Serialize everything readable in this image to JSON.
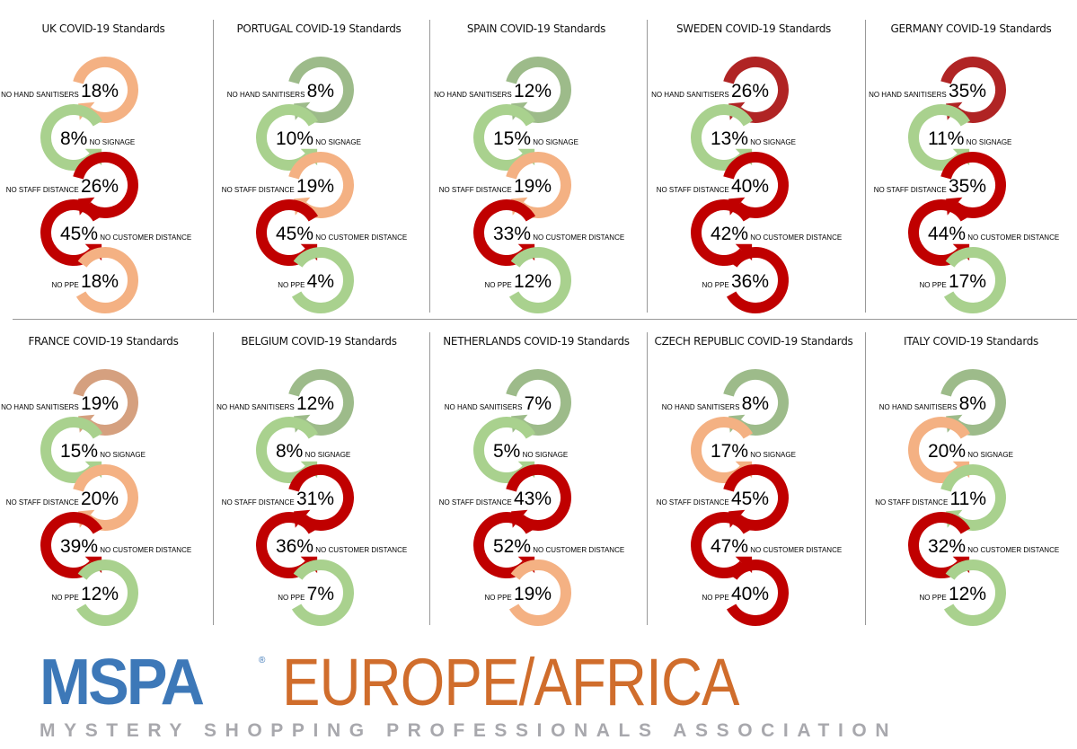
{
  "colors": {
    "green": "#a9d18e",
    "olive": "#9dbb8a",
    "orange": "#f4b183",
    "brown": "#d5a07f",
    "red": "#c00000",
    "darkred": "#b02424",
    "brand_blue": "#3d78b8",
    "brand_orange": "#d06d2c"
  },
  "chart_data": {
    "type": "infographic-arc-sequence",
    "metrics": [
      "NO HAND SANITISERS",
      "NO SIGNAGE",
      "NO STAFF DISTANCE",
      "NO CUSTOMER DISTANCE",
      "NO PPE"
    ],
    "unit": "%",
    "countries": [
      {
        "title": "UK COVID-19 Standards",
        "values": [
          18,
          8,
          26,
          45,
          18
        ],
        "colors": [
          "orange",
          "green",
          "red",
          "red",
          "orange"
        ]
      },
      {
        "title": "PORTUGAL COVID-19 Standards",
        "values": [
          8,
          10,
          19,
          45,
          4
        ],
        "colors": [
          "olive",
          "green",
          "orange",
          "red",
          "green"
        ]
      },
      {
        "title": "SPAIN COVID-19 Standards",
        "values": [
          12,
          15,
          19,
          33,
          12
        ],
        "colors": [
          "olive",
          "green",
          "orange",
          "red",
          "green"
        ]
      },
      {
        "title": "SWEDEN COVID-19 Standards",
        "values": [
          26,
          13,
          40,
          42,
          36
        ],
        "colors": [
          "darkred",
          "green",
          "red",
          "red",
          "red"
        ]
      },
      {
        "title": "GERMANY COVID-19 Standards",
        "values": [
          35,
          11,
          35,
          44,
          17
        ],
        "colors": [
          "darkred",
          "green",
          "red",
          "red",
          "green"
        ]
      },
      {
        "title": "FRANCE COVID-19 Standards",
        "values": [
          19,
          15,
          20,
          39,
          12
        ],
        "colors": [
          "brown",
          "green",
          "orange",
          "red",
          "green"
        ]
      },
      {
        "title": "BELGIUM COVID-19 Standards",
        "values": [
          12,
          8,
          31,
          36,
          7
        ],
        "colors": [
          "olive",
          "green",
          "red",
          "red",
          "green"
        ]
      },
      {
        "title": "NETHERLANDS COVID-19 Standards",
        "values": [
          7,
          5,
          43,
          52,
          19
        ],
        "colors": [
          "olive",
          "green",
          "red",
          "red",
          "orange"
        ]
      },
      {
        "title": "CZECH REPUBLIC COVID-19 Standards",
        "values": [
          8,
          17,
          45,
          47,
          40
        ],
        "colors": [
          "olive",
          "orange",
          "red",
          "red",
          "red"
        ]
      },
      {
        "title": "ITALY COVID-19 Standards",
        "values": [
          8,
          20,
          11,
          32,
          12
        ],
        "colors": [
          "olive",
          "orange",
          "green",
          "red",
          "green"
        ]
      }
    ]
  },
  "logo": {
    "brand": "MSPA",
    "registered": "®",
    "region": "EUROPE/AFRICA",
    "tagline": "MYSTERY SHOPPING PROFESSIONALS ASSOCIATION"
  }
}
